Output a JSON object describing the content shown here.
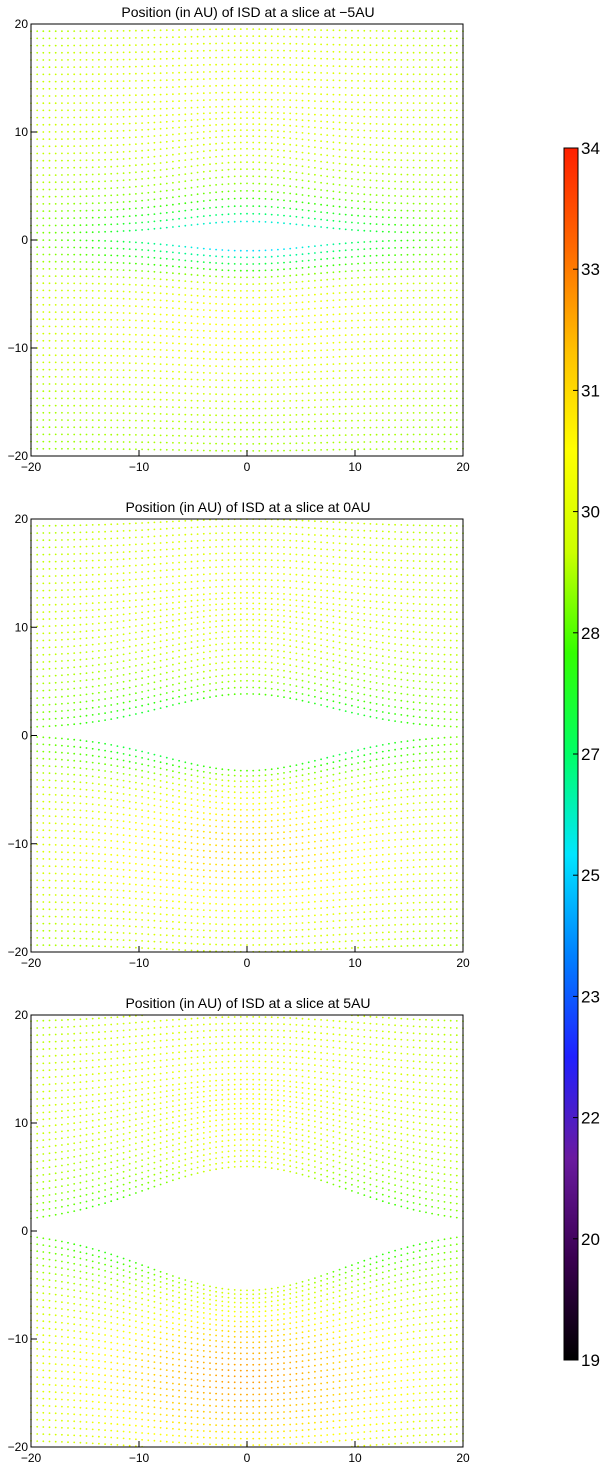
{
  "colorbar": {
    "min": 19,
    "max": 34,
    "tick_labels": [
      "34",
      "33",
      "31",
      "30",
      "28",
      "27",
      "25",
      "23",
      "22",
      "20",
      "19"
    ],
    "tick_values": [
      34,
      32.5,
      31,
      29.5,
      28,
      26.5,
      25,
      23.5,
      22,
      20.5,
      19
    ],
    "colors": [
      "#000000",
      "#3a0050",
      "#6a1aa0",
      "#2020ff",
      "#0080ff",
      "#00e5ff",
      "#00ff66",
      "#33ff00",
      "#ccff00",
      "#ffff00",
      "#ffc000",
      "#ff6a00",
      "#ff2000"
    ]
  },
  "chart_data": [
    {
      "type": "scatter",
      "title": "Position (in AU) of ISD at a slice at −5AU",
      "slice_au": -5,
      "xlim": [
        -20,
        20
      ],
      "ylim": [
        -20,
        20
      ],
      "x_tick_labels": [
        "−20",
        "−10",
        "0",
        "10",
        "20"
      ],
      "y_tick_labels": [
        "20",
        "10",
        "0",
        "−10",
        "−20"
      ],
      "grid": false,
      "color_scale": [
        19,
        34
      ]
    },
    {
      "type": "scatter",
      "title": "Position (in AU) of ISD at a slice at 0AU",
      "slice_au": 0,
      "xlim": [
        -20,
        20
      ],
      "ylim": [
        -20,
        20
      ],
      "x_tick_labels": [
        "−20",
        "−10",
        "0",
        "10",
        "20"
      ],
      "y_tick_labels": [
        "20",
        "10",
        "0",
        "−10",
        "−20"
      ],
      "grid": false,
      "color_scale": [
        19,
        34
      ]
    },
    {
      "type": "scatter",
      "title": "Position (in AU) of ISD at a slice at 5AU",
      "slice_au": 5,
      "xlim": [
        -20,
        20
      ],
      "ylim": [
        -20,
        20
      ],
      "x_tick_labels": [
        "−20",
        "−10",
        "0",
        "10",
        "20"
      ],
      "y_tick_labels": [
        "20",
        "10",
        "0",
        "−10",
        "−20"
      ],
      "grid": false,
      "color_scale": [
        19,
        34
      ]
    }
  ]
}
